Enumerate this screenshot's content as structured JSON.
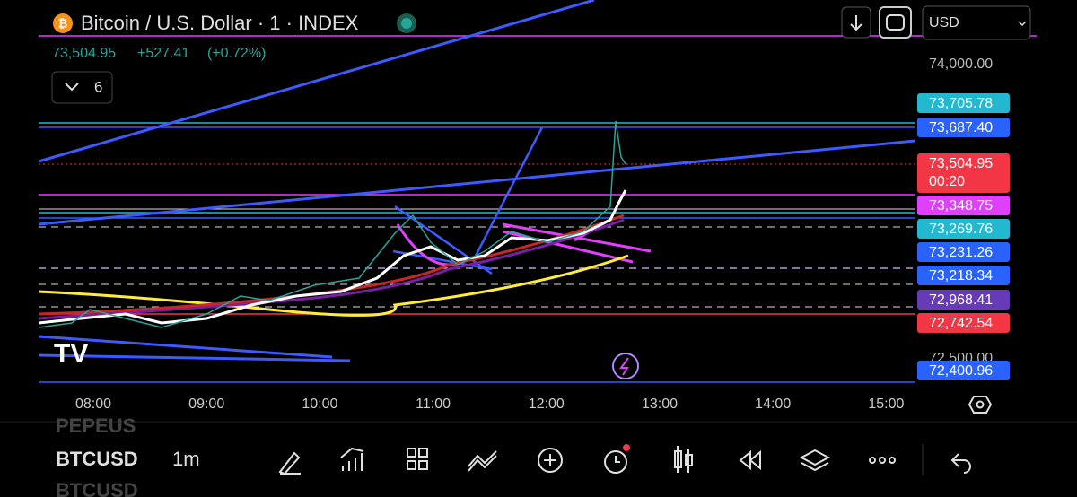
{
  "header": {
    "title": "Bitcoin / U.S. Dollar · 1 · INDEX",
    "currency": "USD"
  },
  "quote": {
    "price": "73,504.95",
    "change": "+527.41",
    "change_pct": "(+0.72%)"
  },
  "indicators": {
    "count": "6"
  },
  "price_axis": {
    "plain": [
      {
        "label": "74,000.00"
      },
      {
        "label": "72,500.00"
      }
    ],
    "tags": [
      {
        "label": "73,705.78",
        "color": "#22b8cf"
      },
      {
        "label": "73,687.40",
        "color": "#2962ff"
      },
      {
        "label": "73,504.95",
        "color": "#f23645",
        "countdown": "00:20"
      },
      {
        "label": "73,348.75",
        "color": "#e040fb"
      },
      {
        "label": "73,269.76",
        "color": "#22b8cf"
      },
      {
        "label": "73,231.26",
        "color": "#2962ff"
      },
      {
        "label": "73,218.34",
        "color": "#2962ff"
      },
      {
        "label": "72,968.41",
        "color": "#673ab7"
      },
      {
        "label": "72,742.54",
        "color": "#f23645"
      },
      {
        "label": "72,400.96",
        "color": "#2962ff"
      }
    ]
  },
  "time_axis": [
    "08:00",
    "09:00",
    "10:00",
    "11:00",
    "12:00",
    "13:00",
    "14:00",
    "15:00"
  ],
  "toolbar": {
    "symbol": "BTCUSD",
    "interval": "1m",
    "prev_symbol": "PEPEUS",
    "next_symbol": "BTCUSD"
  }
}
